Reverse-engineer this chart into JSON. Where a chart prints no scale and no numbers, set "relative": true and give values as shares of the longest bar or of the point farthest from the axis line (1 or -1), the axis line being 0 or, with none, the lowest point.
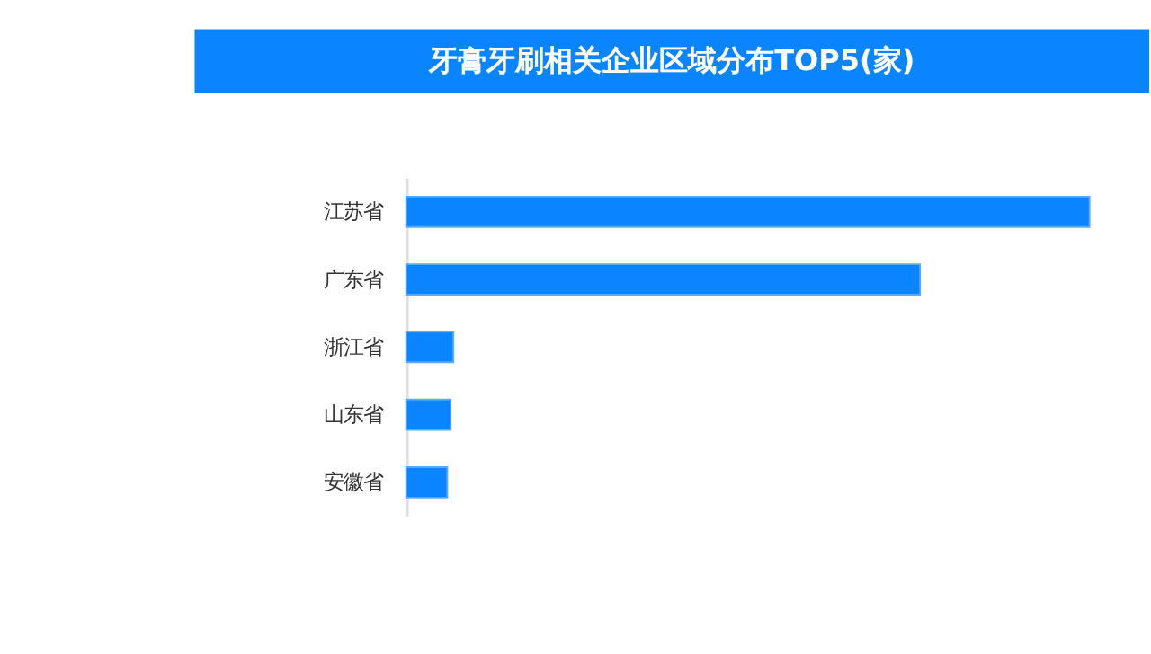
{
  "chart_data": {
    "type": "bar",
    "orientation": "horizontal",
    "relative": true,
    "title": "牙膏牙刷相关企业区域分布TOP5(家)",
    "categories": [
      "江苏省",
      "广东省",
      "浙江省",
      "山东省",
      "安徽省"
    ],
    "values": [
      1,
      0.752,
      0.069,
      0.065,
      0.06
    ],
    "color": "#0a84ff"
  }
}
